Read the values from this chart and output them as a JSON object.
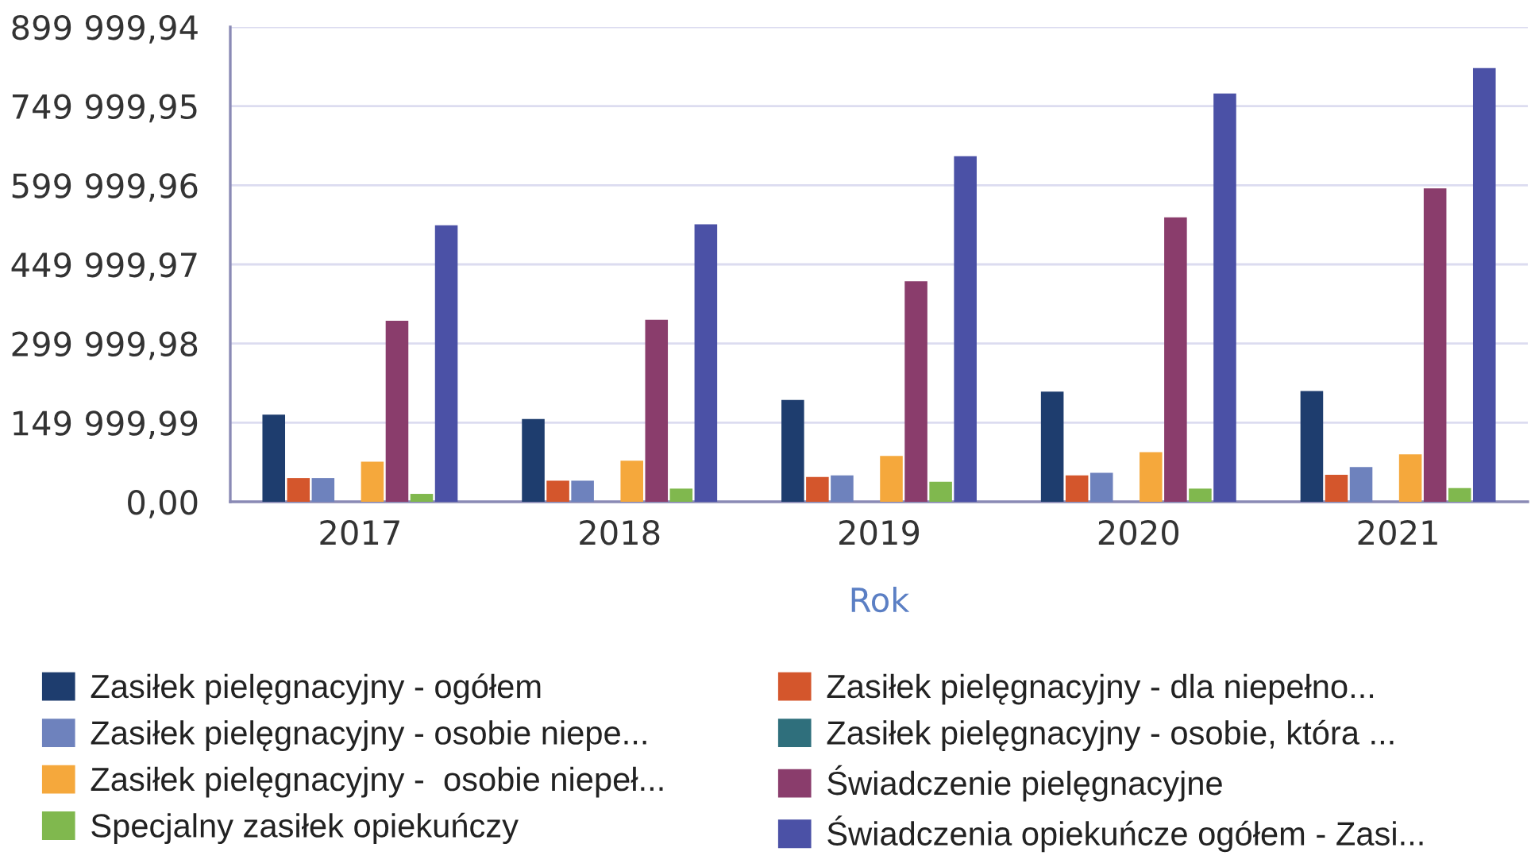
{
  "chart_data": {
    "type": "bar",
    "xlabel": "Rok",
    "categories": [
      "2017",
      "2018",
      "2019",
      "2020",
      "2021"
    ],
    "series": [
      {
        "name": "Zasiłek pielęgnacyjny - ogółem",
        "color": "#1e3d6e",
        "values": [
          165000,
          157000,
          193000,
          209000,
          210000
        ]
      },
      {
        "name": "Zasiłek pielęgnacyjny - dla niepełno...",
        "color": "#d4562c",
        "values": [
          45000,
          40000,
          47000,
          50000,
          51000
        ]
      },
      {
        "name": "Zasiłek pielęgnacyjny - osobie niepe...",
        "color": "#6e82bd",
        "values": [
          45000,
          40000,
          50000,
          55000,
          66000
        ]
      },
      {
        "name": "Zasiłek pielęgnacyjny - osobie, która ...",
        "color": "#2f6f7c",
        "values": [
          null,
          null,
          null,
          null,
          null
        ]
      },
      {
        "name": "Zasiłek pielęgnacyjny -  osobie niepeł...",
        "color": "#f5a83c",
        "values": [
          76000,
          78000,
          87000,
          94000,
          90000
        ]
      },
      {
        "name": "Świadczenie pielęgnacyjne",
        "color": "#8a3d6c",
        "values": [
          343000,
          345000,
          418000,
          539000,
          594000
        ]
      },
      {
        "name": "Specjalny zasiłek opiekuńczy",
        "color": "#80b84e",
        "values": [
          15000,
          25000,
          38000,
          25000,
          26000
        ]
      },
      {
        "name": "Świadczenia opiekuńcze ogółem - Zasi...",
        "color": "#4b51a6",
        "values": [
          524000,
          526000,
          655000,
          774000,
          822000
        ]
      }
    ],
    "ylim": [
      0,
      899999.94
    ],
    "yticks": [
      {
        "value": 0,
        "label": "0,00"
      },
      {
        "value": 149999.99,
        "label": "149 999,99"
      },
      {
        "value": 299999.98,
        "label": "299 999,98"
      },
      {
        "value": 449999.97,
        "label": "449 999,97"
      },
      {
        "value": 599999.96,
        "label": "599 999,96"
      },
      {
        "value": 749999.95,
        "label": "749 999,95"
      },
      {
        "value": 899999.94,
        "label": "899 999,94"
      }
    ],
    "grid": "y",
    "legend": "bottom"
  }
}
